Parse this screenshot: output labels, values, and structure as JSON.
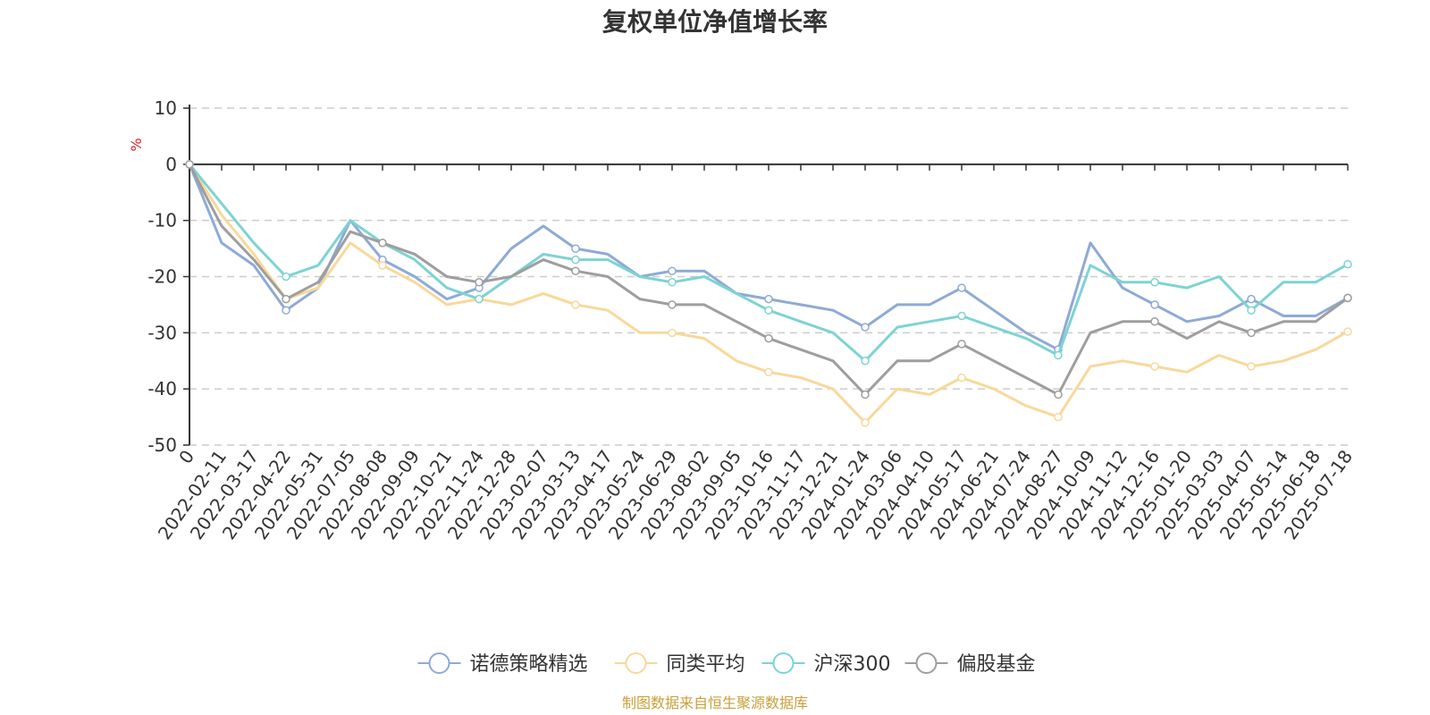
{
  "title": "复权单位净值增长率",
  "source": "制图数据来自恒生聚源数据库",
  "chart_data": {
    "type": "line",
    "title": "复权单位净值增长率",
    "ylabel": "%",
    "ylim": [
      -50,
      10
    ],
    "yticks": [
      10,
      0,
      -10,
      -20,
      -30,
      -40,
      -50
    ],
    "grid": true,
    "legend_position": "bottom",
    "x_tick_labels": [
      "0",
      "2022-02-11",
      "2022-03-17",
      "2022-04-22",
      "2022-05-31",
      "2022-07-05",
      "2022-08-08",
      "2022-09-09",
      "2022-10-21",
      "2022-11-24",
      "2022-12-28",
      "2023-02-07",
      "2023-03-13",
      "2023-04-17",
      "2023-05-24",
      "2023-06-29",
      "2023-08-02",
      "2023-09-05",
      "2023-10-16",
      "2023-11-17",
      "2023-12-21",
      "2024-01-24",
      "2024-03-06",
      "2024-04-10",
      "2024-05-17",
      "2024-06-21",
      "2024-07-24",
      "2024-08-27",
      "2024-10-09",
      "2024-11-12",
      "2024-12-16",
      "2025-01-20",
      "2025-03-03",
      "2025-04-07",
      "2025-05-14",
      "2025-06-18",
      "2025-07-18"
    ],
    "series": [
      {
        "name": "诺德策略精选",
        "color": "#8eaad6",
        "values": [
          0,
          -14,
          -18,
          -26,
          -22,
          -10,
          -17,
          -20,
          -24,
          -22,
          -15,
          -11,
          -15,
          -16,
          -20,
          -19,
          -19,
          -23,
          -24,
          -25,
          -26,
          -29,
          -25,
          -25,
          -22,
          -26,
          -30,
          -33,
          -14,
          -22,
          -25,
          -28,
          -27,
          -24,
          -27,
          -27,
          -23.8
        ]
      },
      {
        "name": "同类平均",
        "color": "#f8d89a",
        "values": [
          0,
          -9,
          -16,
          -24,
          -22,
          -14,
          -18,
          -21,
          -25,
          -24,
          -25,
          -23,
          -25,
          -26,
          -30,
          -30,
          -31,
          -35,
          -37,
          -38,
          -40,
          -46,
          -40,
          -41,
          -38,
          -40,
          -43,
          -45,
          -36,
          -35,
          -36,
          -37,
          -34,
          -36,
          -35,
          -33,
          -29.8
        ]
      },
      {
        "name": "沪深300",
        "color": "#7dd3d3",
        "values": [
          0,
          -7,
          -14,
          -20,
          -18,
          -10,
          -14,
          -17,
          -22,
          -24,
          -20,
          -16,
          -17,
          -17,
          -20,
          -21,
          -20,
          -23,
          -26,
          -28,
          -30,
          -35,
          -29,
          -28,
          -27,
          -29,
          -31,
          -34,
          -18,
          -21,
          -21,
          -22,
          -20,
          -26,
          -21,
          -21,
          -17.8
        ]
      },
      {
        "name": "偏股基金",
        "color": "#9e9e9e",
        "values": [
          0,
          -11,
          -17,
          -24,
          -21,
          -12,
          -14,
          -16,
          -20,
          -21,
          -20,
          -17,
          -19,
          -20,
          -24,
          -25,
          -25,
          -28,
          -31,
          -33,
          -35,
          -41,
          -35,
          -35,
          -32,
          -35,
          -38,
          -41,
          -30,
          -28,
          -28,
          -31,
          -28,
          -30,
          -28,
          -28,
          -23.8
        ]
      }
    ]
  }
}
